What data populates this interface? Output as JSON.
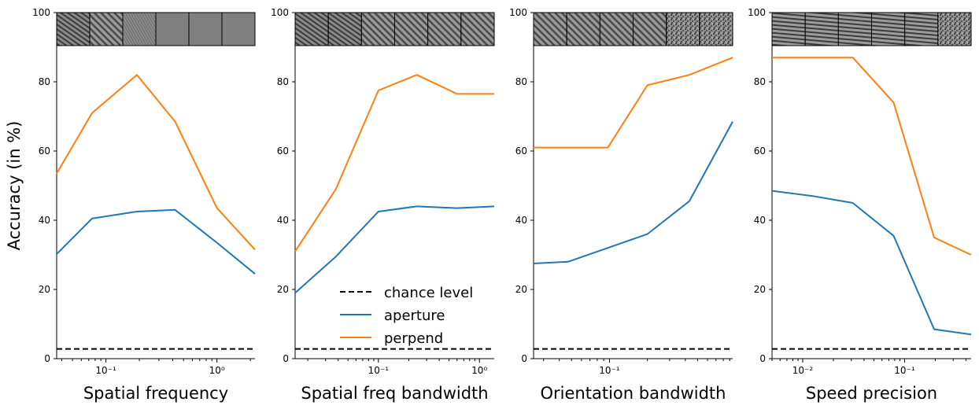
{
  "figure": {
    "ylabel": "Accuracy (in %)",
    "legend": {
      "placement": "lower-right of panel 2",
      "entries": [
        {
          "label": "chance level",
          "style": "dashed",
          "color": "#000000"
        },
        {
          "label": "aperture",
          "style": "solid",
          "color": "#1f77b4"
        },
        {
          "label": "perpend",
          "style": "solid",
          "color": "#ff7f0e"
        }
      ]
    },
    "colors": {
      "aperture": "#1f77b4",
      "perpend": "#ff7f0e",
      "chance": "#000000"
    }
  },
  "chart_data": [
    {
      "type": "line",
      "xlabel": "Spatial frequency",
      "xscale": "log",
      "xlim": [
        0.036,
        2.2
      ],
      "ylim": [
        0,
        100
      ],
      "yticks": [
        0,
        20,
        40,
        60,
        80,
        100
      ],
      "xticks": [
        {
          "value": 0.1,
          "label": "10⁻¹"
        },
        {
          "value": 1,
          "label": "10⁰"
        }
      ],
      "x": [
        0.036,
        0.075,
        0.19,
        0.42,
        1.0,
        2.2
      ],
      "chance_level": 2.8,
      "thumbnails": [
        "texture-diag-fine",
        "texture-diag",
        "texture-fine",
        "texture-smooth",
        "texture-smooth",
        "texture-smooth"
      ],
      "series": [
        {
          "name": "aperture",
          "values": [
            30.2,
            40.5,
            42.5,
            43.0,
            33.5,
            24.5
          ]
        },
        {
          "name": "perpend",
          "values": [
            53.5,
            71.0,
            82.0,
            68.5,
            43.5,
            31.5
          ]
        }
      ]
    },
    {
      "type": "line",
      "xlabel": "Spatial freq bandwidth",
      "xscale": "log",
      "xlim": [
        0.015,
        1.4
      ],
      "ylim": [
        0,
        100
      ],
      "yticks": [
        0,
        20,
        40,
        60,
        80,
        100
      ],
      "xticks": [
        {
          "value": 0.1,
          "label": "10⁻¹"
        },
        {
          "value": 1,
          "label": "10⁰"
        }
      ],
      "x": [
        0.015,
        0.038,
        0.1,
        0.24,
        0.6,
        1.4
      ],
      "chance_level": 2.8,
      "thumbnails": [
        "texture-diag-fine",
        "texture-diag-fine",
        "texture-diag",
        "texture-diag",
        "texture-diag",
        "texture-diag"
      ],
      "series": [
        {
          "name": "aperture",
          "values": [
            19.0,
            29.5,
            42.5,
            44.0,
            43.5,
            44.0
          ]
        },
        {
          "name": "perpend",
          "values": [
            31.0,
            49.0,
            77.5,
            82.0,
            76.5,
            76.5
          ]
        }
      ]
    },
    {
      "type": "line",
      "xlabel": "Orientation bandwidth",
      "xscale": "log",
      "xlim": [
        0.025,
        0.95
      ],
      "ylim": [
        0,
        100
      ],
      "yticks": [
        0,
        20,
        40,
        60,
        80,
        100
      ],
      "xticks": [
        {
          "value": 0.1,
          "label": "10⁻¹"
        }
      ],
      "x": [
        0.025,
        0.047,
        0.097,
        0.2,
        0.43,
        0.95
      ],
      "chance_level": 2.8,
      "thumbnails": [
        "texture-diag",
        "texture-diag",
        "texture-diag",
        "texture-diag",
        "texture-diag-noisy",
        "texture-noise"
      ],
      "series": [
        {
          "name": "aperture",
          "values": [
            27.5,
            28.0,
            32.0,
            36.0,
            45.5,
            68.5
          ]
        },
        {
          "name": "perpend",
          "values": [
            61.0,
            61.0,
            61.0,
            79.0,
            82.0,
            87.0
          ]
        }
      ]
    },
    {
      "type": "line",
      "xlabel": "Speed precision",
      "xscale": "log",
      "xlim": [
        0.005,
        0.45
      ],
      "ylim": [
        0,
        100
      ],
      "yticks": [
        0,
        20,
        40,
        60,
        80,
        100
      ],
      "xticks": [
        {
          "value": 0.01,
          "label": "10⁻²"
        },
        {
          "value": 0.1,
          "label": "10⁻¹"
        }
      ],
      "x": [
        0.005,
        0.0125,
        0.031,
        0.078,
        0.195,
        0.45
      ],
      "chance_level": 2.8,
      "thumbnails": [
        "texture-horiz",
        "texture-horiz",
        "texture-horiz",
        "texture-horiz",
        "texture-horiz",
        "texture-horiz-noisy"
      ],
      "series": [
        {
          "name": "aperture",
          "values": [
            48.5,
            47.0,
            45.0,
            35.5,
            8.5,
            7.0
          ]
        },
        {
          "name": "perpend",
          "values": [
            87.0,
            87.0,
            87.0,
            74.0,
            35.0,
            30.0
          ]
        }
      ]
    }
  ]
}
